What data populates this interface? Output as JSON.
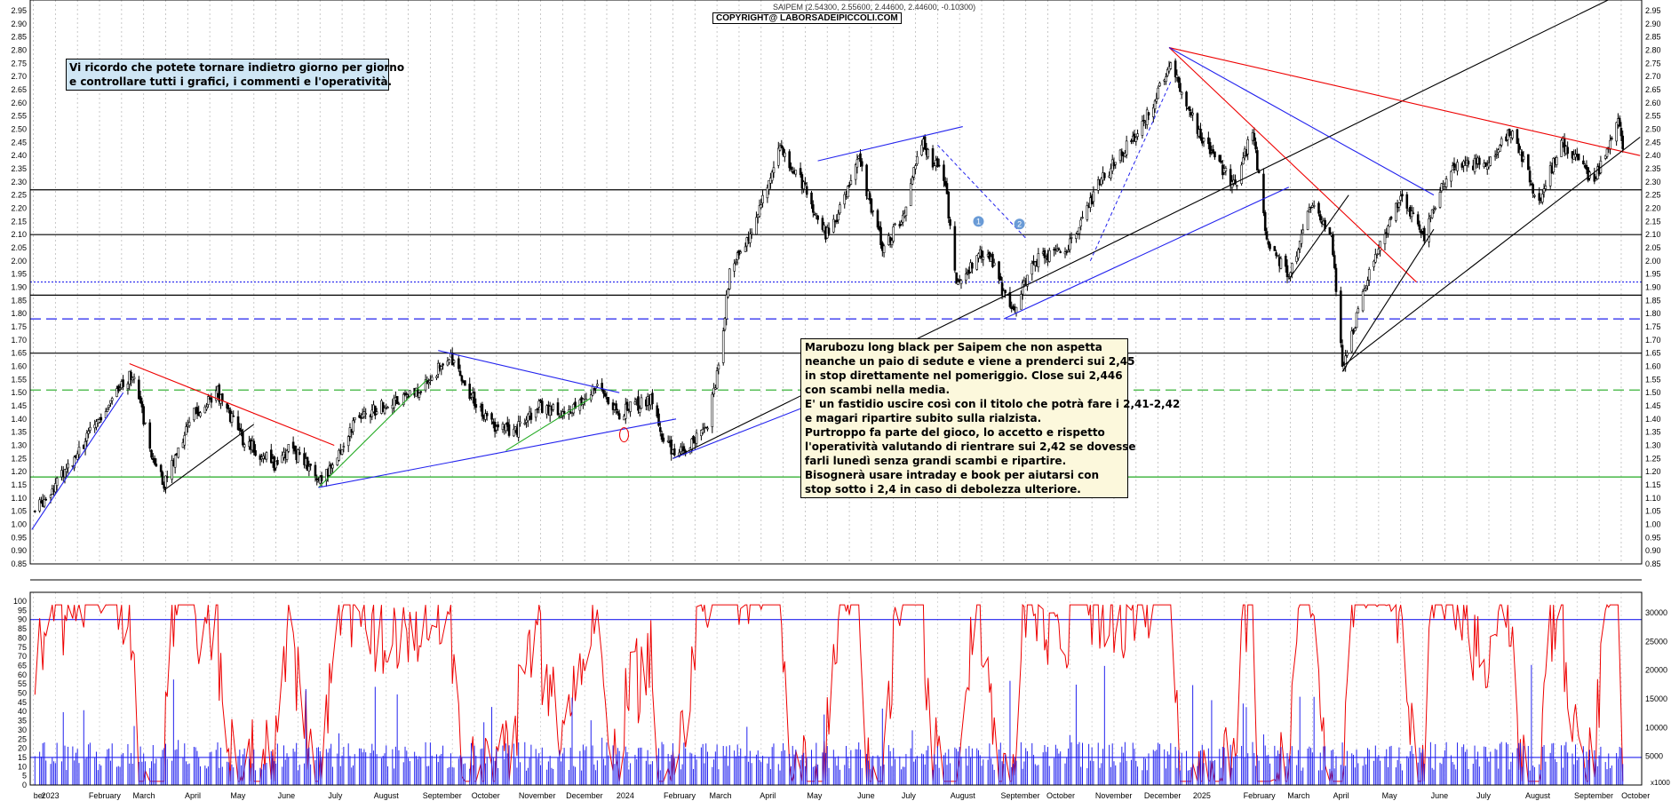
{
  "chart_data": {
    "type": "candlestick",
    "title": "SAIPEM (2.54300, 2.55600, 2.44600, 2.44600, -0.10300)",
    "copyright": "COPYRIGHT@ LABORSADEIPICCOLI.COM",
    "price_axis": {
      "ylim": [
        0.85,
        2.95
      ],
      "ticks": [
        "2.95",
        "2.90",
        "2.85",
        "2.80",
        "2.75",
        "2.70",
        "2.65",
        "2.60",
        "2.55",
        "2.50",
        "2.45",
        "2.40",
        "2.35",
        "2.30",
        "2.25",
        "2.20",
        "2.15",
        "2.10",
        "2.05",
        "2.00",
        "1.95",
        "1.90",
        "1.85",
        "1.80",
        "1.75",
        "1.70",
        "1.65",
        "1.60",
        "1.55",
        "1.50",
        "1.45",
        "1.40",
        "1.35",
        "1.30",
        "1.25",
        "1.20",
        "1.15",
        "1.10",
        "1.05",
        "1.00",
        "0.95",
        "0.90",
        "0.85"
      ]
    },
    "oscillator_axis": {
      "ylim": [
        0,
        100
      ],
      "ticks": [
        "100",
        "95",
        "90",
        "85",
        "80",
        "75",
        "70",
        "65",
        "60",
        "55",
        "50",
        "45",
        "40",
        "35",
        "30",
        "25",
        "20",
        "15",
        "10",
        "5",
        "0"
      ]
    },
    "volume_axis": {
      "ticks": [
        "30000",
        "25000",
        "20000",
        "15000",
        "10000",
        "5000"
      ],
      "unit": "x1000"
    },
    "x_axis": {
      "labels": [
        "ber",
        "2023",
        "February",
        "March",
        "April",
        "May",
        "June",
        "July",
        "August",
        "September",
        "October",
        "November",
        "December",
        "2024",
        "February",
        "March",
        "April",
        "May",
        "June",
        "July",
        "August",
        "September",
        "October",
        "November",
        "December",
        "2025",
        "February",
        "March",
        "April",
        "May",
        "June",
        "July",
        "August",
        "September",
        "October"
      ]
    },
    "price_anchors": [
      {
        "date": "2022-12-30",
        "close": 1.05
      },
      {
        "date": "2023-01-20",
        "close": 1.22
      },
      {
        "date": "2023-02-15",
        "close": 1.45
      },
      {
        "date": "2023-03-02",
        "close": 1.58
      },
      {
        "date": "2023-03-15",
        "close": 1.25
      },
      {
        "date": "2023-03-22",
        "close": 1.16
      },
      {
        "date": "2023-04-10",
        "close": 1.42
      },
      {
        "date": "2023-04-25",
        "close": 1.5
      },
      {
        "date": "2023-05-10",
        "close": 1.33
      },
      {
        "date": "2023-06-01",
        "close": 1.22
      },
      {
        "date": "2023-06-10",
        "close": 1.3
      },
      {
        "date": "2023-06-30",
        "close": 1.15
      },
      {
        "date": "2023-07-20",
        "close": 1.38
      },
      {
        "date": "2023-08-10",
        "close": 1.46
      },
      {
        "date": "2023-08-30",
        "close": 1.5
      },
      {
        "date": "2023-09-20",
        "close": 1.64
      },
      {
        "date": "2023-10-02",
        "close": 1.5
      },
      {
        "date": "2023-10-15",
        "close": 1.38
      },
      {
        "date": "2023-10-30",
        "close": 1.35
      },
      {
        "date": "2023-11-15",
        "close": 1.45
      },
      {
        "date": "2023-12-05",
        "close": 1.42
      },
      {
        "date": "2023-12-20",
        "close": 1.52
      },
      {
        "date": "2024-01-05",
        "close": 1.42
      },
      {
        "date": "2024-01-25",
        "close": 1.48
      },
      {
        "date": "2024-02-02",
        "close": 1.3
      },
      {
        "date": "2024-02-15",
        "close": 1.27
      },
      {
        "date": "2024-03-01",
        "close": 1.38
      },
      {
        "date": "2024-03-08",
        "close": 1.6
      },
      {
        "date": "2024-03-15",
        "close": 1.95
      },
      {
        "date": "2024-04-01",
        "close": 2.15
      },
      {
        "date": "2024-04-15",
        "close": 2.44
      },
      {
        "date": "2024-04-30",
        "close": 2.3
      },
      {
        "date": "2024-05-15",
        "close": 2.1
      },
      {
        "date": "2024-05-25",
        "close": 2.2
      },
      {
        "date": "2024-06-05",
        "close": 2.38
      },
      {
        "date": "2024-06-20",
        "close": 2.05
      },
      {
        "date": "2024-07-02",
        "close": 2.15
      },
      {
        "date": "2024-07-15",
        "close": 2.45
      },
      {
        "date": "2024-07-30",
        "close": 2.3
      },
      {
        "date": "2024-08-06",
        "close": 1.9
      },
      {
        "date": "2024-08-25",
        "close": 2.05
      },
      {
        "date": "2024-09-10",
        "close": 1.8
      },
      {
        "date": "2024-09-25",
        "close": 2.0
      },
      {
        "date": "2024-10-15",
        "close": 2.05
      },
      {
        "date": "2024-11-05",
        "close": 2.3
      },
      {
        "date": "2024-12-01",
        "close": 2.5
      },
      {
        "date": "2024-12-20",
        "close": 2.75
      },
      {
        "date": "2025-01-10",
        "close": 2.45
      },
      {
        "date": "2025-01-30",
        "close": 2.28
      },
      {
        "date": "2025-02-10",
        "close": 2.5
      },
      {
        "date": "2025-02-20",
        "close": 2.05
      },
      {
        "date": "2025-03-05",
        "close": 1.95
      },
      {
        "date": "2025-03-20",
        "close": 2.22
      },
      {
        "date": "2025-04-01",
        "close": 2.1
      },
      {
        "date": "2025-04-08",
        "close": 1.6
      },
      {
        "date": "2025-04-25",
        "close": 1.95
      },
      {
        "date": "2025-05-15",
        "close": 2.25
      },
      {
        "date": "2025-05-30",
        "close": 2.1
      },
      {
        "date": "2025-06-15",
        "close": 2.35
      },
      {
        "date": "2025-07-10",
        "close": 2.38
      },
      {
        "date": "2025-07-25",
        "close": 2.5
      },
      {
        "date": "2025-08-10",
        "close": 2.22
      },
      {
        "date": "2025-08-25",
        "close": 2.45
      },
      {
        "date": "2025-09-15",
        "close": 2.3
      },
      {
        "date": "2025-09-30",
        "close": 2.55
      },
      {
        "date": "2025-10-03",
        "close": 2.446
      }
    ],
    "horizontal_levels": [
      {
        "value": 2.27,
        "color": "#000000",
        "style": "solid"
      },
      {
        "value": 2.1,
        "color": "#000000",
        "style": "solid"
      },
      {
        "value": 1.92,
        "color": "#2222ee",
        "style": "dotted"
      },
      {
        "value": 1.87,
        "color": "#000000",
        "style": "solid"
      },
      {
        "value": 1.78,
        "color": "#2222ee",
        "style": "dashed"
      },
      {
        "value": 1.65,
        "color": "#000000",
        "style": "solid"
      },
      {
        "value": 1.51,
        "color": "#22aa22",
        "style": "dashed"
      },
      {
        "value": 1.18,
        "color": "#22aa22",
        "style": "solid"
      }
    ],
    "oscillator_levels": [
      90,
      15
    ],
    "colors": {
      "price": "#000000",
      "oscillator": "#ee0000",
      "volume": "#2222ee",
      "trend_red": "#ee0000",
      "trend_blue": "#2222ee",
      "trend_green": "#22aa22",
      "trend_black": "#000000"
    }
  },
  "annotations": {
    "reminder": [
      "Vi ricordo che potete tornare indietro giorno per giorno",
      "e controllare tutti i grafici, i commenti e l'operatività."
    ],
    "comment": [
      "Marubozu long black per Saipem che non aspetta",
      "neanche un paio di sedute e viene a prenderci sui 2,45",
      "in stop direttamente nel pomeriggio. Close sui 2,446",
      "con scambi nella media.",
      "E' un fastidio uscire così con il titolo che potrà fare i 2,41-2,42",
      "e magari ripartire subito sulla rialzista.",
      "Purtroppo fa parte del gioco, lo accetto e rispetto",
      "l'operatività valutando di rientrare sui 2,42 se dovesse",
      "farli lunedì senza grandi scambi e ripartire.",
      "Bisognerà usare intraday e book per aiutarsi con",
      "stop sotto i 2,4 in caso di debolezza ulteriore."
    ],
    "markers": [
      "1",
      "2"
    ]
  }
}
